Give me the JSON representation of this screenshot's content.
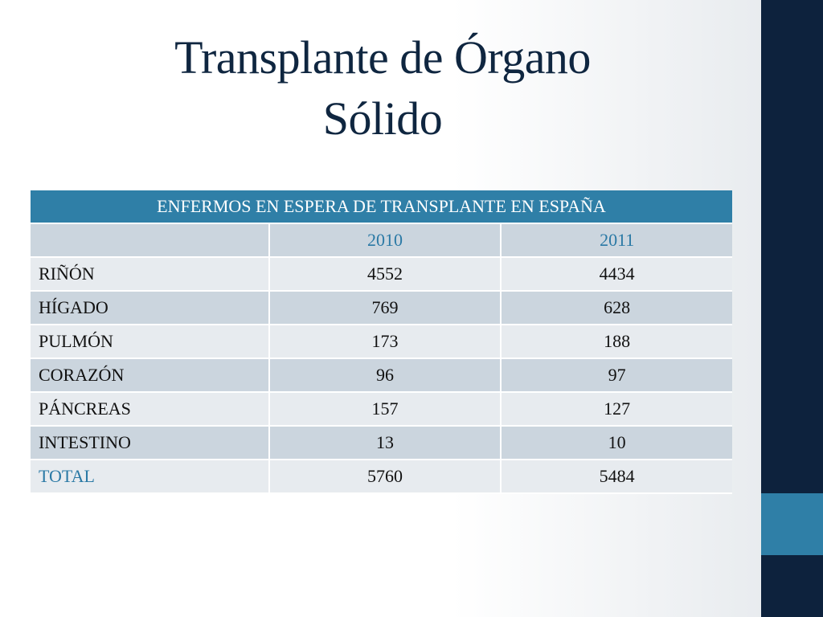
{
  "slide": {
    "title_line1": "Transplante de Órgano",
    "title_line2": "Sólido"
  },
  "table": {
    "header": "ENFERMOS EN ESPERA DE TRANSPLANTE EN ESPAÑA",
    "year_2010": "2010",
    "year_2011": "2011",
    "rows": [
      {
        "organ": "RIÑÓN",
        "v2010": "4552",
        "v2011": "4434"
      },
      {
        "organ": "HÍGADO",
        "v2010": "769",
        "v2011": "628"
      },
      {
        "organ": "PULMÓN",
        "v2010": "173",
        "v2011": "188"
      },
      {
        "organ": "CORAZÓN",
        "v2010": "96",
        "v2011": "97"
      },
      {
        "organ": "PÁNCREAS",
        "v2010": "157",
        "v2011": "127"
      },
      {
        "organ": "INTESTINO",
        "v2010": "13",
        "v2011": "10"
      }
    ],
    "total": {
      "label": "TOTAL",
      "v2010": "5760",
      "v2011": "5484"
    }
  },
  "colors": {
    "title": "#0f2640",
    "sidebar": "#0d223d",
    "accent": "#2f7fa7",
    "row_dark": "#cbd5de",
    "row_light": "#e7ebef"
  }
}
